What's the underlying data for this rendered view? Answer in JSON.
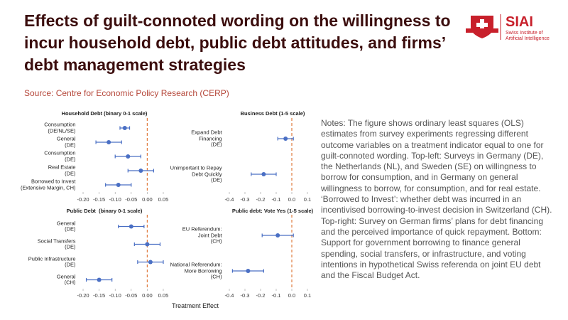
{
  "header": {
    "title": "Effects of guilt-connoted wording on the willingness to incur household debt, public debt attitudes, and firms’ debt management strategies",
    "source": "Source: Centre for Economic Policy Research (CERP)"
  },
  "logo": {
    "name": "SIAI",
    "subtitle": "Swiss Institute of Artificial Intelligence"
  },
  "notes": "Notes: The figure shows ordinary least squares (OLS) estimates from survey experiments regressing different outcome variables on a treatment indicator equal to one for guilt-connoted wording. Top-left: Surveys in Germany (DE), the Netherlands (NL), and Sweden (SE) on willingness to borrow for consumption, and in Germany on general willingness to borrow, for consumption, and for real estate. ‘Borrowed to Invest’: whether debt was incurred in an incentivised borrowing-to-invest decision in Switzerland (CH). Top-right: Survey on German firms’ plans for debt financing and the perceived importance of quick repayment. Bottom: Support for government borrowing to finance general spending, social transfers, or infrastructure, and voting intentions in hypothetical Swiss referenda on joint EU debt and the Fiscal Budget Act.",
  "figure": {
    "xlabel": "Treatment Effect"
  },
  "chart_data": [
    {
      "type": "errorbar",
      "title": "Household Debt (binary 0-1 scale)",
      "categories": [
        "Consumption\n(DE/NL/SE)",
        "General\n(DE)",
        "Consumption\n(DE)",
        "Real Estate\n(DE)",
        "Borrowed to Invest\n(Extensive Margin, CH)"
      ],
      "values": [
        -0.07,
        -0.12,
        -0.06,
        -0.02,
        -0.09
      ],
      "errors": [
        0.015,
        0.04,
        0.04,
        0.04,
        0.04
      ],
      "color": "#4a6fc4",
      "refline": 0,
      "refline_color": "#e07a3c",
      "xlim": [
        -0.21,
        0.06
      ],
      "xticks": [
        {
          "value": -0.2,
          "label": "-0.20"
        },
        {
          "value": -0.15,
          "label": "-0.15"
        },
        {
          "value": -0.1,
          "label": "-0.10"
        },
        {
          "value": -0.05,
          "label": "-0.05"
        },
        {
          "value": 0,
          "label": "0.00"
        },
        {
          "value": 0.05,
          "label": "0.05"
        }
      ]
    },
    {
      "type": "errorbar",
      "title": "Business Debt (1-5 scale)",
      "categories": [
        "Expand Debt\nFinancing\n(DE)",
        "Unimportant to Repay\nDebt Quickly\n(DE)"
      ],
      "values": [
        -0.04,
        -0.18
      ],
      "errors": [
        0.05,
        0.08
      ],
      "color": "#4a6fc4",
      "refline": 0,
      "refline_color": "#e07a3c",
      "xlim": [
        -0.42,
        0.12
      ],
      "xticks": [
        -0.4,
        -0.3,
        -0.2,
        -0.1,
        {
          "value": 0,
          "label": "0.0"
        },
        0.1
      ]
    },
    {
      "type": "errorbar",
      "title": "Public Debt  (binary 0-1 scale)",
      "categories": [
        "General\n(DE)",
        "Social Transfers\n(DE)",
        "Public Infrastructure\n(DE)",
        "General\n(CH)"
      ],
      "values": [
        -0.05,
        0.0,
        0.01,
        -0.15
      ],
      "errors": [
        0.04,
        0.04,
        0.04,
        0.04
      ],
      "color": "#4a6fc4",
      "refline": 0,
      "refline_color": "#e07a3c",
      "xlim": [
        -0.21,
        0.06
      ],
      "xticks": [
        {
          "value": -0.2,
          "label": "-0.20"
        },
        {
          "value": -0.15,
          "label": "-0.15"
        },
        {
          "value": -0.1,
          "label": "-0.10"
        },
        {
          "value": -0.05,
          "label": "-0.05"
        },
        {
          "value": 0,
          "label": "0.00"
        },
        {
          "value": 0.05,
          "label": "0.05"
        }
      ]
    },
    {
      "type": "errorbar",
      "title": "Public debt: Vote Yes (1-5 scale)",
      "categories": [
        "EU Referendum:\nJoint Debt\n(CH)",
        "National Referendum:\nMore Borrowing\n(CH)"
      ],
      "values": [
        -0.09,
        -0.28
      ],
      "errors": [
        0.1,
        0.1
      ],
      "color": "#4a6fc4",
      "refline": 0,
      "refline_color": "#e07a3c",
      "xlim": [
        -0.42,
        0.12
      ],
      "xticks": [
        -0.4,
        -0.3,
        -0.2,
        -0.1,
        {
          "value": 0,
          "label": "0.0"
        },
        0.1
      ]
    }
  ]
}
